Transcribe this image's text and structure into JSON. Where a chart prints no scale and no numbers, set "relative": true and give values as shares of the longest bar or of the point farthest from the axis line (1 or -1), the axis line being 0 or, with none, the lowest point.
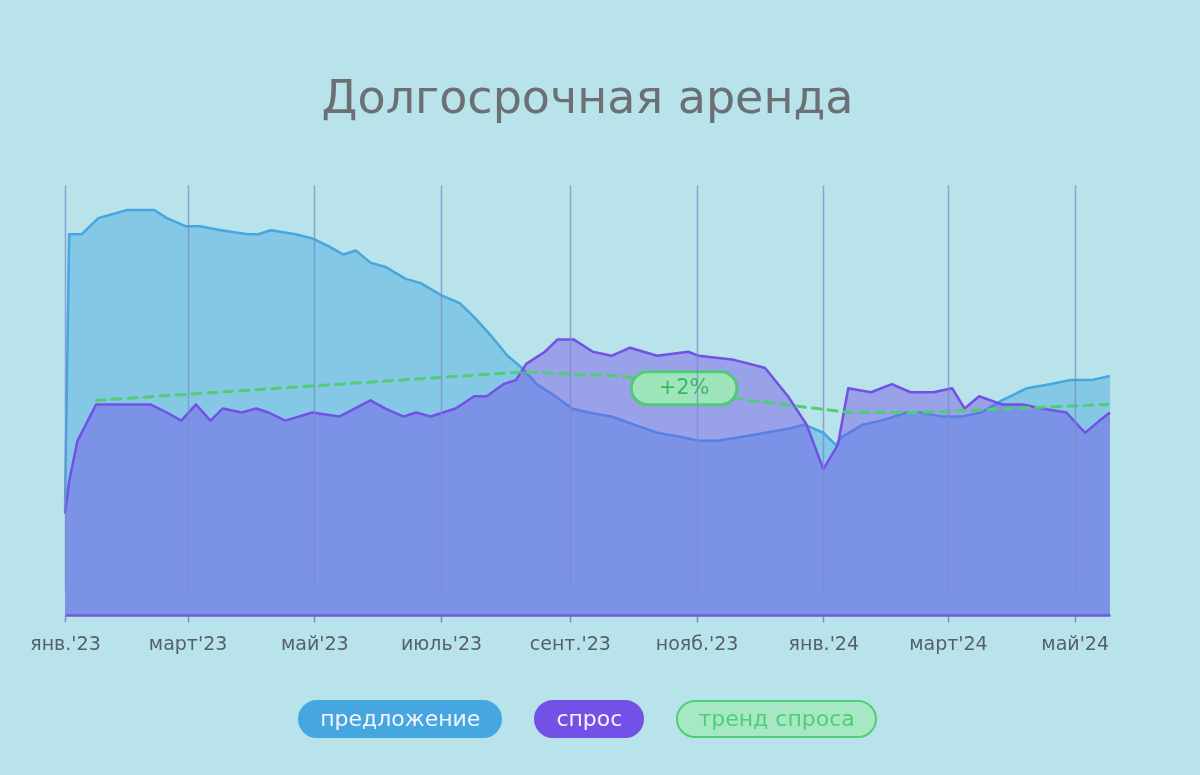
{
  "chart_data": {
    "type": "area",
    "title": "Долгосрочная аренда",
    "relative": true,
    "grid": "x",
    "legend": "bottom",
    "xlim": [
      "2023-01-01",
      "2024-05-18"
    ],
    "xticks": [
      {
        "value": "2023-01-01",
        "label": "янв.'23"
      },
      {
        "value": "2023-03-01",
        "label": "март'23"
      },
      {
        "value": "2023-05-01",
        "label": "май'23"
      },
      {
        "value": "2023-07-01",
        "label": "июль'23"
      },
      {
        "value": "2023-09-01",
        "label": "сент.'23"
      },
      {
        "value": "2023-11-01",
        "label": "нояб.'23"
      },
      {
        "value": "2024-01-01",
        "label": "янв.'24"
      },
      {
        "value": "2024-03-01",
        "label": "март'24"
      },
      {
        "value": "2024-05-01",
        "label": "май'24"
      }
    ],
    "series": [
      {
        "name": "предложение",
        "color": "#45a6e0",
        "x": [
          "2023-01-01",
          "2023-01-03",
          "2023-01-09",
          "2023-01-17",
          "2023-01-31",
          "2023-02-13",
          "2023-02-19",
          "2023-02-28",
          "2023-03-07",
          "2023-03-17",
          "2023-03-30",
          "2023-04-04",
          "2023-04-10",
          "2023-04-22",
          "2023-04-30",
          "2023-05-08",
          "2023-05-15",
          "2023-05-21",
          "2023-05-28",
          "2023-06-04",
          "2023-06-14",
          "2023-06-21",
          "2023-07-01",
          "2023-07-10",
          "2023-07-18",
          "2023-07-25",
          "2023-08-02",
          "2023-08-09",
          "2023-08-16",
          "2023-08-25",
          "2023-09-02",
          "2023-09-10",
          "2023-09-21",
          "2023-10-02",
          "2023-10-13",
          "2023-10-24",
          "2023-11-02",
          "2023-11-11",
          "2023-11-23",
          "2023-12-04",
          "2023-12-15",
          "2023-12-23",
          "2024-01-01",
          "2024-01-07",
          "2024-01-10",
          "2024-01-20",
          "2024-01-29",
          "2024-02-10",
          "2024-02-17",
          "2024-02-27",
          "2024-03-08",
          "2024-03-17",
          "2024-03-27",
          "2024-04-08",
          "2024-04-19",
          "2024-04-29",
          "2024-05-09",
          "2024-05-18"
        ],
        "values": [
          0.26,
          0.94,
          0.94,
          0.98,
          1.0,
          1.0,
          0.98,
          0.96,
          0.96,
          0.95,
          0.94,
          0.94,
          0.95,
          0.94,
          0.93,
          0.91,
          0.89,
          0.9,
          0.87,
          0.86,
          0.83,
          0.82,
          0.79,
          0.77,
          0.73,
          0.69,
          0.64,
          0.61,
          0.57,
          0.54,
          0.51,
          0.5,
          0.49,
          0.47,
          0.45,
          0.44,
          0.43,
          0.43,
          0.44,
          0.45,
          0.46,
          0.47,
          0.45,
          0.42,
          0.44,
          0.47,
          0.48,
          0.5,
          0.5,
          0.49,
          0.49,
          0.5,
          0.53,
          0.56,
          0.57,
          0.58,
          0.58,
          0.59
        ]
      },
      {
        "name": "спрос",
        "color": "#7350e6",
        "x": [
          "2023-01-01",
          "2023-01-03",
          "2023-01-07",
          "2023-01-16",
          "2023-01-23",
          "2023-02-03",
          "2023-02-11",
          "2023-02-19",
          "2023-02-26",
          "2023-03-05",
          "2023-03-12",
          "2023-03-18",
          "2023-03-27",
          "2023-04-03",
          "2023-04-09",
          "2023-04-17",
          "2023-04-30",
          "2023-05-13",
          "2023-05-28",
          "2023-06-04",
          "2023-06-13",
          "2023-06-19",
          "2023-06-26",
          "2023-07-08",
          "2023-07-17",
          "2023-07-23",
          "2023-07-31",
          "2023-08-06",
          "2023-08-11",
          "2023-08-20",
          "2023-08-26",
          "2023-09-03",
          "2023-09-12",
          "2023-09-21",
          "2023-09-30",
          "2023-10-13",
          "2023-10-28",
          "2023-11-02",
          "2023-11-19",
          "2023-12-04",
          "2023-12-15",
          "2023-12-24",
          "2024-01-01",
          "2024-01-08",
          "2024-01-13",
          "2024-01-24",
          "2024-02-03",
          "2024-02-12",
          "2024-02-23",
          "2024-03-03",
          "2024-03-09",
          "2024-03-16",
          "2024-03-27",
          "2024-04-06",
          "2024-04-15",
          "2024-04-27",
          "2024-05-06",
          "2024-05-13",
          "2024-05-18"
        ],
        "values": [
          0.25,
          0.33,
          0.43,
          0.52,
          0.52,
          0.52,
          0.52,
          0.5,
          0.48,
          0.52,
          0.48,
          0.51,
          0.5,
          0.51,
          0.5,
          0.48,
          0.5,
          0.49,
          0.53,
          0.51,
          0.49,
          0.5,
          0.49,
          0.51,
          0.54,
          0.54,
          0.57,
          0.58,
          0.62,
          0.65,
          0.68,
          0.68,
          0.65,
          0.64,
          0.66,
          0.64,
          0.65,
          0.64,
          0.63,
          0.61,
          0.54,
          0.47,
          0.36,
          0.42,
          0.56,
          0.55,
          0.57,
          0.55,
          0.55,
          0.56,
          0.51,
          0.54,
          0.52,
          0.52,
          0.51,
          0.5,
          0.45,
          0.48,
          0.5
        ]
      },
      {
        "name": "тренд спроса",
        "type": "line",
        "line_style": "dashed",
        "color": "#4fcf74",
        "x": [
          "2023-01-16",
          "2023-08-09",
          "2023-09-26",
          "2023-11-26",
          "2024-01-14",
          "2024-02-17",
          "2024-05-17"
        ],
        "values": [
          0.53,
          0.6,
          0.59,
          0.53,
          0.5,
          0.5,
          0.52
        ]
      }
    ],
    "annotations": [
      {
        "text": "+2%",
        "x": "2023-10-26",
        "y": 0.56
      }
    ]
  }
}
